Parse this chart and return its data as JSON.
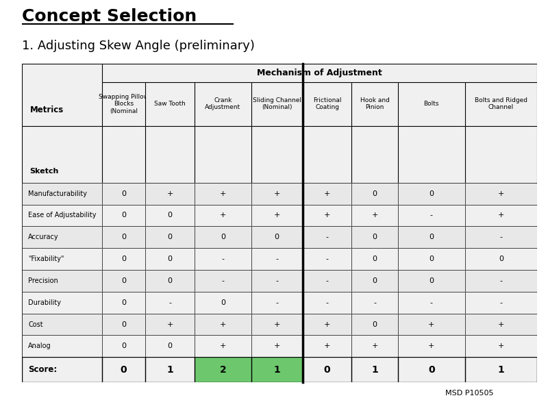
{
  "title": "Concept Selection",
  "subtitle": "1. Adjusting Skew Angle (preliminary)",
  "section_header": "Mechanism of Adjustment",
  "col_headers": [
    [
      "Swapping Pillow",
      "Blocks",
      "(Nominal"
    ],
    [
      "Saw Tooth"
    ],
    [
      "Crank",
      "Adjustment"
    ],
    [
      "Sliding Channel",
      "(Nominal)"
    ],
    [
      "Frictional",
      "Coating"
    ],
    [
      "Hook and",
      "Pinion"
    ],
    [
      "Bolts"
    ],
    [
      "Bolts and Ridged",
      "Channel"
    ]
  ],
  "row_label": "Metrics",
  "sketch_label": "Sketch",
  "rows": [
    {
      "label": "Manufacturability",
      "vals": [
        "0",
        "+",
        "+",
        "+",
        "+",
        "0",
        "0",
        "+"
      ]
    },
    {
      "label": "Ease of Adjustability",
      "vals": [
        "0",
        "0",
        "+",
        "+",
        "+",
        "+",
        "-",
        "+"
      ]
    },
    {
      "label": "Accuracy",
      "vals": [
        "0",
        "0",
        "0",
        "0",
        "-",
        "0",
        "0",
        "-"
      ]
    },
    {
      "label": "\"Fixability\"",
      "vals": [
        "0",
        "0",
        "-",
        "-",
        "-",
        "0",
        "0",
        "0"
      ]
    },
    {
      "label": "Precision",
      "vals": [
        "0",
        "0",
        "-",
        "-",
        "-",
        "0",
        "0",
        "-"
      ]
    },
    {
      "label": "Durability",
      "vals": [
        "0",
        "-",
        "0",
        "-",
        "-",
        "-",
        "-",
        "-"
      ]
    },
    {
      "label": "Cost",
      "vals": [
        "0",
        "+",
        "+",
        "+",
        "+",
        "0",
        "+",
        "+"
      ]
    },
    {
      "label": "Analog",
      "vals": [
        "0",
        "0",
        "+",
        "+",
        "+",
        "+",
        "+",
        "+"
      ]
    }
  ],
  "score_row": {
    "label": "Score:",
    "vals": [
      "0",
      "1",
      "2",
      "1",
      "0",
      "1",
      "0",
      "1"
    ],
    "highlight_cols": [
      2,
      3
    ]
  },
  "highlight_color": "#6dc86d",
  "table_bg": "#f0f0f0",
  "thick_border_col": 4,
  "footer": "MSD P10505",
  "bg_color": "#ffffff"
}
